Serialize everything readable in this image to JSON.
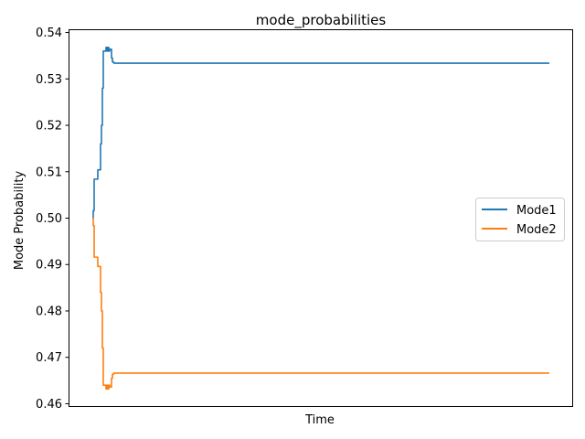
{
  "chart_data": {
    "type": "line",
    "title": "mode_probabilities",
    "xlabel": "Time",
    "ylabel": "Mode Probability",
    "xticks_visible": false,
    "xlim": [
      -5,
      105
    ],
    "ylim": [
      0.4595,
      0.5405
    ],
    "yticks": [
      0.46,
      0.47,
      0.48,
      0.49,
      0.5,
      0.51,
      0.52,
      0.53,
      0.54
    ],
    "ytick_labels": [
      "0.46",
      "0.47",
      "0.48",
      "0.49",
      "0.50",
      "0.51",
      "0.52",
      "0.53",
      "0.54"
    ],
    "grid": false,
    "legend_position": "center-right",
    "series": [
      {
        "name": "Mode1",
        "color": "#1f77b4",
        "x": [
          0,
          0.2,
          0.4,
          0.6,
          1.0,
          1.2,
          1.4,
          1.8,
          2.0,
          2.2,
          2.4,
          2.8,
          3.0,
          3.2,
          3.4,
          3.6,
          3.8,
          4.2,
          4.4,
          4.6,
          4.8,
          5.0,
          100
        ],
        "y": [
          0.5,
          0.5016,
          0.5084,
          0.5084,
          0.5084,
          0.5104,
          0.5104,
          0.516,
          0.52,
          0.528,
          0.536,
          0.536,
          0.5368,
          0.536,
          0.5368,
          0.536,
          0.5364,
          0.5345,
          0.5337,
          0.5335,
          0.5334,
          0.5334,
          0.5334
        ]
      },
      {
        "name": "Mode2",
        "color": "#ff7f0e",
        "x": [
          0,
          0.2,
          0.4,
          0.6,
          1.0,
          1.2,
          1.4,
          1.8,
          2.0,
          2.2,
          2.4,
          2.8,
          3.0,
          3.2,
          3.4,
          3.6,
          3.8,
          4.2,
          4.4,
          4.6,
          4.8,
          5.0,
          100
        ],
        "y": [
          0.5,
          0.4984,
          0.4916,
          0.4916,
          0.4916,
          0.4896,
          0.4896,
          0.484,
          0.48,
          0.472,
          0.464,
          0.464,
          0.4632,
          0.464,
          0.4632,
          0.464,
          0.4636,
          0.4655,
          0.4663,
          0.4665,
          0.4666,
          0.4666,
          0.4666
        ]
      }
    ]
  }
}
